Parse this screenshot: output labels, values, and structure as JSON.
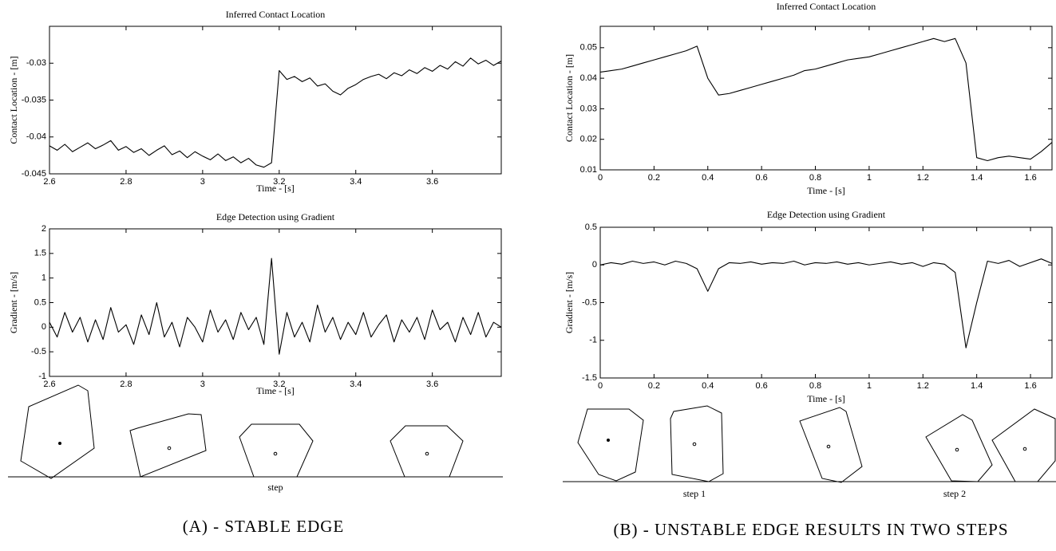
{
  "chart_data": [
    {
      "type": "line",
      "title": "Inferred Contact Location",
      "xlabel": "Time - [s]",
      "ylabel": "Contact Location - [m]",
      "color": "#000000",
      "x": [
        2.6,
        2.62,
        2.64,
        2.66,
        2.68,
        2.7,
        2.72,
        2.74,
        2.76,
        2.78,
        2.8,
        2.82,
        2.84,
        2.86,
        2.88,
        2.9,
        2.92,
        2.94,
        2.96,
        2.98,
        3.0,
        3.02,
        3.04,
        3.06,
        3.08,
        3.1,
        3.12,
        3.14,
        3.16,
        3.18,
        3.2,
        3.22,
        3.24,
        3.26,
        3.28,
        3.3,
        3.32,
        3.34,
        3.36,
        3.38,
        3.4,
        3.42,
        3.44,
        3.46,
        3.48,
        3.5,
        3.52,
        3.54,
        3.56,
        3.58,
        3.6,
        3.62,
        3.64,
        3.66,
        3.68,
        3.7,
        3.72,
        3.74,
        3.76,
        3.78
      ],
      "values": [
        -0.0412,
        -0.0418,
        -0.041,
        -0.042,
        -0.0414,
        -0.0408,
        -0.0416,
        -0.0411,
        -0.0405,
        -0.0418,
        -0.0413,
        -0.0421,
        -0.0416,
        -0.0425,
        -0.0418,
        -0.0412,
        -0.0424,
        -0.0419,
        -0.0428,
        -0.042,
        -0.0426,
        -0.0431,
        -0.0423,
        -0.0432,
        -0.0427,
        -0.0435,
        -0.0429,
        -0.0438,
        -0.0441,
        -0.0435,
        -0.031,
        -0.0322,
        -0.0318,
        -0.0325,
        -0.032,
        -0.0331,
        -0.0328,
        -0.0338,
        -0.0343,
        -0.0334,
        -0.0329,
        -0.0322,
        -0.0318,
        -0.0315,
        -0.0321,
        -0.0313,
        -0.0317,
        -0.0309,
        -0.0314,
        -0.0306,
        -0.0311,
        -0.0303,
        -0.0308,
        -0.0298,
        -0.0304,
        -0.0293,
        -0.0301,
        -0.0296,
        -0.0303,
        -0.0297
      ],
      "xlim": [
        2.6,
        3.78
      ],
      "xticks": [
        2.6,
        2.8,
        3,
        3.2,
        3.4,
        3.6
      ],
      "ylim": [
        -0.045,
        -0.025
      ],
      "yticks": [
        -0.045,
        -0.04,
        -0.035,
        -0.03
      ]
    },
    {
      "type": "line",
      "title": "Edge Detection using Gradient",
      "xlabel": "Time - [s]",
      "ylabel": "Gradient - [m/s]",
      "color": "#000000",
      "x": [
        2.6,
        2.62,
        2.64,
        2.66,
        2.68,
        2.7,
        2.72,
        2.74,
        2.76,
        2.78,
        2.8,
        2.82,
        2.84,
        2.86,
        2.88,
        2.9,
        2.92,
        2.94,
        2.96,
        2.98,
        3.0,
        3.02,
        3.04,
        3.06,
        3.08,
        3.1,
        3.12,
        3.14,
        3.16,
        3.18,
        3.2,
        3.22,
        3.24,
        3.26,
        3.28,
        3.3,
        3.32,
        3.34,
        3.36,
        3.38,
        3.4,
        3.42,
        3.44,
        3.46,
        3.48,
        3.5,
        3.52,
        3.54,
        3.56,
        3.58,
        3.6,
        3.62,
        3.64,
        3.66,
        3.68,
        3.7,
        3.72,
        3.74,
        3.76,
        3.78
      ],
      "values": [
        0.1,
        -0.2,
        0.3,
        -0.1,
        0.2,
        -0.3,
        0.15,
        -0.25,
        0.4,
        -0.1,
        0.05,
        -0.35,
        0.25,
        -0.15,
        0.5,
        -0.2,
        0.1,
        -0.4,
        0.2,
        0.0,
        -0.3,
        0.35,
        -0.1,
        0.15,
        -0.25,
        0.3,
        -0.05,
        0.2,
        -0.35,
        1.4,
        -0.55,
        0.3,
        -0.2,
        0.1,
        -0.3,
        0.45,
        -0.1,
        0.2,
        -0.25,
        0.1,
        -0.15,
        0.3,
        -0.2,
        0.05,
        0.25,
        -0.3,
        0.15,
        -0.1,
        0.2,
        -0.25,
        0.35,
        -0.05,
        0.1,
        -0.3,
        0.2,
        -0.15,
        0.3,
        -0.2,
        0.1,
        0.0
      ],
      "xlim": [
        2.6,
        3.78
      ],
      "xticks": [
        2.6,
        2.8,
        3,
        3.2,
        3.4,
        3.6
      ],
      "ylim": [
        -1,
        2
      ],
      "yticks": [
        -1,
        -0.5,
        0,
        0.5,
        1,
        1.5,
        2
      ]
    },
    {
      "type": "line",
      "title": "Inferred Contact Location",
      "xlabel": "Time - [s]",
      "ylabel": "Contact Location - [m]",
      "color": "#000000",
      "x": [
        0,
        0.04,
        0.08,
        0.12,
        0.16,
        0.2,
        0.24,
        0.28,
        0.32,
        0.36,
        0.4,
        0.44,
        0.48,
        0.52,
        0.56,
        0.6,
        0.64,
        0.68,
        0.72,
        0.76,
        0.8,
        0.84,
        0.88,
        0.92,
        0.96,
        1.0,
        1.04,
        1.08,
        1.12,
        1.16,
        1.2,
        1.24,
        1.28,
        1.32,
        1.36,
        1.4,
        1.44,
        1.48,
        1.52,
        1.56,
        1.6,
        1.64,
        1.68
      ],
      "values": [
        0.042,
        0.0425,
        0.043,
        0.044,
        0.045,
        0.046,
        0.047,
        0.048,
        0.049,
        0.0505,
        0.04,
        0.0345,
        0.035,
        0.036,
        0.037,
        0.038,
        0.039,
        0.04,
        0.041,
        0.0425,
        0.043,
        0.044,
        0.045,
        0.046,
        0.0465,
        0.047,
        0.048,
        0.049,
        0.05,
        0.051,
        0.052,
        0.053,
        0.052,
        0.053,
        0.045,
        0.014,
        0.013,
        0.014,
        0.0145,
        0.014,
        0.0135,
        0.016,
        0.019
      ],
      "xlim": [
        0,
        1.68
      ],
      "xticks": [
        0,
        0.2,
        0.4,
        0.6,
        0.8,
        1,
        1.2,
        1.4,
        1.6
      ],
      "ylim": [
        0.01,
        0.057
      ],
      "yticks": [
        0.01,
        0.02,
        0.03,
        0.04,
        0.05
      ]
    },
    {
      "type": "line",
      "title": "Edge Detection using Gradient",
      "xlabel": "Time - [s]",
      "ylabel": "Gradient - [m/s]",
      "color": "#000000",
      "x": [
        0,
        0.04,
        0.08,
        0.12,
        0.16,
        0.2,
        0.24,
        0.28,
        0.32,
        0.36,
        0.4,
        0.44,
        0.48,
        0.52,
        0.56,
        0.6,
        0.64,
        0.68,
        0.72,
        0.76,
        0.8,
        0.84,
        0.88,
        0.92,
        0.96,
        1.0,
        1.04,
        1.08,
        1.12,
        1.16,
        1.2,
        1.24,
        1.28,
        1.32,
        1.36,
        1.4,
        1.44,
        1.48,
        1.52,
        1.56,
        1.6,
        1.64,
        1.68
      ],
      "values": [
        0.0,
        0.03,
        0.01,
        0.05,
        0.02,
        0.04,
        0.0,
        0.05,
        0.02,
        -0.05,
        -0.35,
        -0.05,
        0.03,
        0.02,
        0.04,
        0.01,
        0.03,
        0.02,
        0.05,
        0.0,
        0.03,
        0.02,
        0.04,
        0.01,
        0.03,
        0.0,
        0.02,
        0.04,
        0.01,
        0.03,
        -0.02,
        0.03,
        0.01,
        -0.1,
        -1.1,
        -0.5,
        0.05,
        0.02,
        0.06,
        -0.02,
        0.03,
        0.08,
        0.02
      ],
      "xlim": [
        0,
        1.68
      ],
      "xticks": [
        0,
        0.2,
        0.4,
        0.6,
        0.8,
        1,
        1.2,
        1.4,
        1.6
      ],
      "ylim": [
        -1.5,
        0.5
      ],
      "yticks": [
        -1.5,
        -1,
        -0.5,
        0,
        0.5
      ]
    }
  ],
  "panels": [
    {
      "caption": "(A) - STABLE EDGE",
      "step_labels": [
        "step"
      ]
    },
    {
      "caption": "(B) - UNSTABLE EDGE RESULTS IN TWO STEPS",
      "step_labels": [
        "step 1",
        "step 2"
      ]
    }
  ]
}
